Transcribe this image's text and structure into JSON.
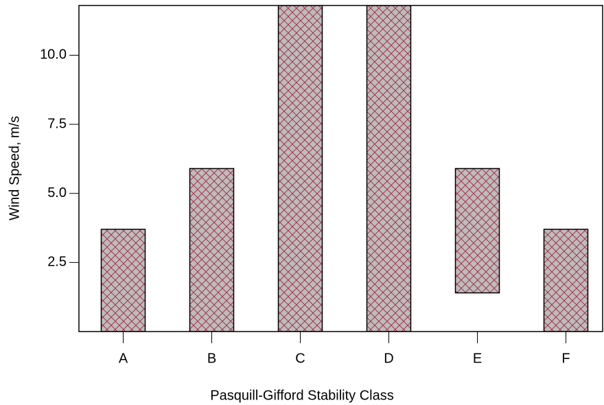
{
  "chart_data": {
    "type": "floating_bar",
    "xlabel": "Pasquill-Gifford Stability Class",
    "ylabel": "Wind Speed, m/s",
    "categories": [
      "A",
      "B",
      "C",
      "D",
      "E",
      "F"
    ],
    "low": [
      0,
      0,
      0,
      0,
      1.4,
      0
    ],
    "high": [
      3.7,
      5.9,
      11.8,
      11.8,
      5.9,
      3.7
    ],
    "color": "#bdbdbd",
    "hatch_color": "#a8324a",
    "ylim": [
      0,
      11.8
    ],
    "yticks": [
      2.5,
      {
        "value": 5,
        "label": "5.0"
      },
      7.5,
      {
        "value": 10,
        "label": "10.0"
      }
    ]
  }
}
